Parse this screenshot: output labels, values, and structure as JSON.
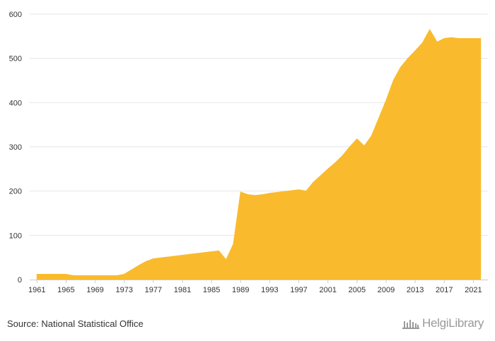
{
  "chart_data": {
    "type": "area",
    "title": "",
    "xlabel": "",
    "ylabel": "",
    "grid": true,
    "legend": "none",
    "xlim": [
      1960,
      2023
    ],
    "ylim": [
      0,
      600
    ],
    "y_ticks": [
      0,
      100,
      200,
      300,
      400,
      500,
      600
    ],
    "x_ticks": [
      1961,
      1965,
      1969,
      1973,
      1977,
      1981,
      1985,
      1989,
      1993,
      1997,
      2001,
      2005,
      2009,
      2013,
      2017,
      2021
    ],
    "colors": {
      "fill": "#F9BB2D",
      "grid": "#e6e6e6",
      "axis": "#cccccc",
      "text": "#333333"
    },
    "series": [
      {
        "x": [
          1961,
          1962,
          1963,
          1964,
          1965,
          1966,
          1967,
          1968,
          1969,
          1970,
          1971,
          1972,
          1973,
          1974,
          1975,
          1976,
          1977,
          1978,
          1979,
          1980,
          1981,
          1982,
          1983,
          1984,
          1985,
          1986,
          1987,
          1988,
          1989,
          1990,
          1991,
          1992,
          1993,
          1994,
          1995,
          1996,
          1997,
          1998,
          1999,
          2000,
          2001,
          2002,
          2003,
          2004,
          2005,
          2006,
          2007,
          2008,
          2009,
          2010,
          2011,
          2012,
          2013,
          2014,
          2015,
          2016,
          2017,
          2018,
          2019,
          2020,
          2021,
          2022
        ],
        "values": [
          12,
          12,
          12,
          12,
          12,
          9,
          9,
          9,
          9,
          9,
          9,
          9,
          12,
          22,
          32,
          41,
          47,
          49,
          51,
          53,
          55,
          57,
          59,
          61,
          63,
          65,
          45,
          80,
          198,
          192,
          190,
          192,
          195,
          197,
          199,
          201,
          203,
          200,
          220,
          235,
          250,
          264,
          280,
          300,
          318,
          302,
          325,
          365,
          405,
          450,
          480,
          500,
          517,
          535,
          565,
          537,
          545,
          547,
          545,
          545,
          545,
          545
        ]
      }
    ]
  },
  "footer": {
    "source": "Source: National Statistical Office",
    "logo_text": "HelgiLibrary"
  }
}
